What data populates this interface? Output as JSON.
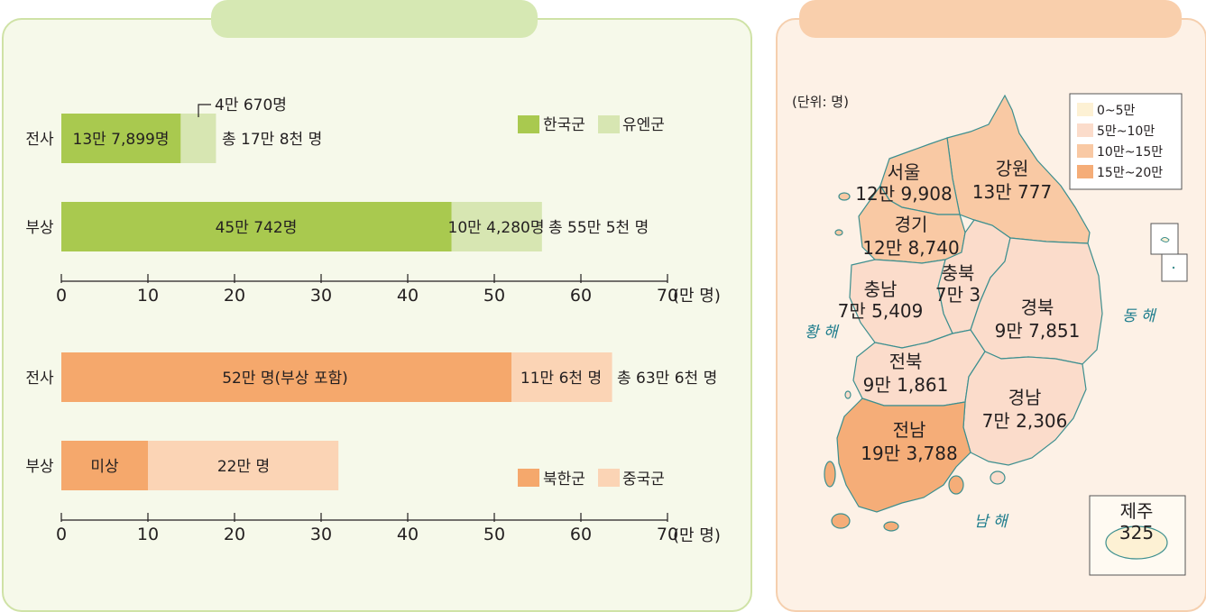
{
  "colors": {
    "korea": "#a9c94f",
    "un": "#d7e6b2",
    "north": "#f5a86c",
    "china": "#fbd4b5",
    "map_high": "#f5ad78",
    "map_mid2": "#f9c9a4",
    "map_mid1": "#fbdccb",
    "map_low": "#fdf1d4",
    "map_border": "#3d8f8f"
  },
  "chart_data": [
    {
      "type": "bar",
      "orientation": "horizontal",
      "stacked": true,
      "categories": [
        "전사",
        "부상"
      ],
      "series": [
        {
          "name": "한국군",
          "values": [
            13.7899,
            45.0742
          ],
          "labels": [
            "13만 7,899명",
            "45만 742명"
          ]
        },
        {
          "name": "유엔군",
          "values": [
            4.067,
            10.428
          ],
          "labels": [
            "",
            "10만 4,280명"
          ]
        }
      ],
      "annotations": {
        "un_dead": "4만 670명"
      },
      "totals": [
        "총 17만 8천 명",
        "총 55만 5천 명"
      ],
      "xlim": [
        0,
        70
      ],
      "xticks": [
        "0",
        "10",
        "20",
        "30",
        "40",
        "50",
        "60",
        "70"
      ],
      "unit": "(만 명)",
      "legend": [
        "한국군",
        "유엔군"
      ],
      "legend_position": "top-right"
    },
    {
      "type": "bar",
      "orientation": "horizontal",
      "stacked": true,
      "categories": [
        "전사",
        "부상"
      ],
      "series": [
        {
          "name": "북한군",
          "values": [
            52,
            10
          ],
          "labels": [
            "52만 명(부상 포함)",
            "미상"
          ]
        },
        {
          "name": "중국군",
          "values": [
            11.6,
            22
          ],
          "labels": [
            "11만 6천 명",
            "22만 명"
          ]
        }
      ],
      "totals": [
        "총 63만 6천 명",
        ""
      ],
      "xlim": [
        0,
        70
      ],
      "xticks": [
        "0",
        "10",
        "20",
        "30",
        "40",
        "50",
        "60",
        "70"
      ],
      "unit": "(만 명)",
      "legend": [
        "북한군",
        "중국군"
      ],
      "legend_position": "bottom-right"
    }
  ],
  "map": {
    "unit": "(단위: 명)",
    "legend": [
      "0~5만",
      "5만~10만",
      "10만~15만",
      "15만~20만"
    ],
    "regions": [
      {
        "name": "서울",
        "value": "12만 9,908",
        "class": "10만~15만"
      },
      {
        "name": "강원",
        "value": "13만 777",
        "class": "10만~15만"
      },
      {
        "name": "경기",
        "value": "12만 8,740",
        "class": "10만~15만"
      },
      {
        "name": "충남",
        "value": "7만 5,409",
        "class": "5만~10만"
      },
      {
        "name": "충북",
        "value": "7만 3",
        "class": "5만~10만"
      },
      {
        "name": "경북",
        "value": "9만 7,851",
        "class": "5만~10만"
      },
      {
        "name": "전북",
        "value": "9만 1,861",
        "class": "5만~10만"
      },
      {
        "name": "경남",
        "value": "7만 2,306",
        "class": "5만~10만"
      },
      {
        "name": "전남",
        "value": "19만 3,788",
        "class": "15만~20만"
      },
      {
        "name": "제주",
        "value": "325",
        "class": "0~5만"
      }
    ],
    "seas": [
      "황 해",
      "동 해",
      "남 해"
    ]
  }
}
